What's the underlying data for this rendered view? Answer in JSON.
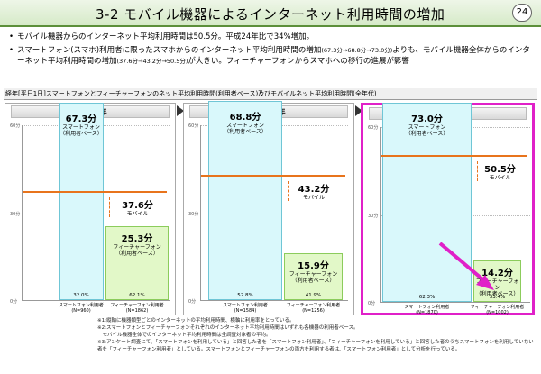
{
  "header": {
    "title": "3-2 モバイル機器によるインターネット利用時間の増加",
    "page": "24"
  },
  "bullets": [
    {
      "pre": "モバイル機器からのインターネット平均利用時間は50.5分。平成24年比で34%増加。"
    },
    {
      "pre": "スマートフォン(スマホ)利用者に限ったスマホからのインターネット平均利用時間の増加",
      "small1": "(67.3分→68.8分→73.0分)",
      "mid": "よりも、モバイル機器全体からのインターネット平均利用時間の増加",
      "small2": "(37.6分→43.2分→50.5分)",
      "post": "が大きい。フィーチャーフォンからスマホへの移行の進展が影響"
    }
  ],
  "chart_title": "経年[平日1日]スマートフォンとフィーチャーフォンのネット平均利用時間(利用者ベース)及びモバイルネット平均利用時間(全年代)",
  "axis": {
    "t60": "60分",
    "t30": "30分",
    "t0": "0分"
  },
  "chart_data": {
    "type": "bar",
    "categories": [
      "スマートフォン利用者",
      "フィーチャーフォン利用者"
    ],
    "ylim": [
      0,
      60
    ],
    "panels": [
      {
        "year": "平成24年",
        "smartphone": {
          "value": 67.3,
          "value_label": "67.3分",
          "label": "スマートフォン\n（利用者ベース）",
          "share": "32.0%",
          "n": "(N=960)"
        },
        "featurephone": {
          "value": 25.3,
          "value_label": "25.3分",
          "label": "フィーチャーフォン\n（利用者ベース）",
          "share": "62.1%",
          "n": "(N=1862)"
        },
        "mobile": {
          "value": 37.6,
          "value_label": "37.6分",
          "label": "モバイル"
        }
      },
      {
        "year": "平成25年",
        "smartphone": {
          "value": 68.8,
          "value_label": "68.8分",
          "label": "スマートフォン\n（利用者ベース）",
          "share": "52.8%",
          "n": "(N=1584)"
        },
        "featurephone": {
          "value": 15.9,
          "value_label": "15.9分",
          "label": "フィーチャーフォン\n（利用者ベース）",
          "share": "41.9%",
          "n": "(N=1256)"
        },
        "mobile": {
          "value": 43.2,
          "value_label": "43.2分",
          "label": "モバイル"
        }
      },
      {
        "year": "平成26年",
        "smartphone": {
          "value": 73.0,
          "value_label": "73.0分",
          "label": "スマートフォン\n（利用者ベース）",
          "share": "62.3%",
          "n": "(N=1870)"
        },
        "featurephone": {
          "value": 14.2,
          "value_label": "14.2分",
          "label": "フィーチャーフォン\n（利用者ベース）",
          "share": "33.4%",
          "n": "(N=1002)"
        },
        "mobile": {
          "value": 50.5,
          "value_label": "50.5分",
          "label": "モバイル"
        }
      }
    ]
  },
  "footnotes": [
    "※1:縦軸に機器類型ごとのインターネットの平均利用時間、横軸に利用率をとっている。",
    "※2:スマートフォンとフィーチャーフォンそれぞれのインターネット平均利用時間はいずれも各機器の利用者ベース。",
    "　モバイル機器全体でのインターネット平均利用時間は全調査対象者の平均。",
    "※3:アンケート調査にて、「スマートフォンを利用している」と回答した者を「スマートフォン利用者」、「フィーチャーフォンを利用している」と回答した者のうちスマートフォンを利用していない者を「フィーチャーフォン利用者」としている。スマートフォンとフィーチャーフォンの両方を利用する者は、「スマートフォン利用者」として分析を行っている。"
  ],
  "colors": {
    "accent": "#e020c8",
    "mobile_line": "#e8741c",
    "smartphone_bar": "#d9f8fb",
    "featurephone_bar": "#e2f8c8"
  }
}
